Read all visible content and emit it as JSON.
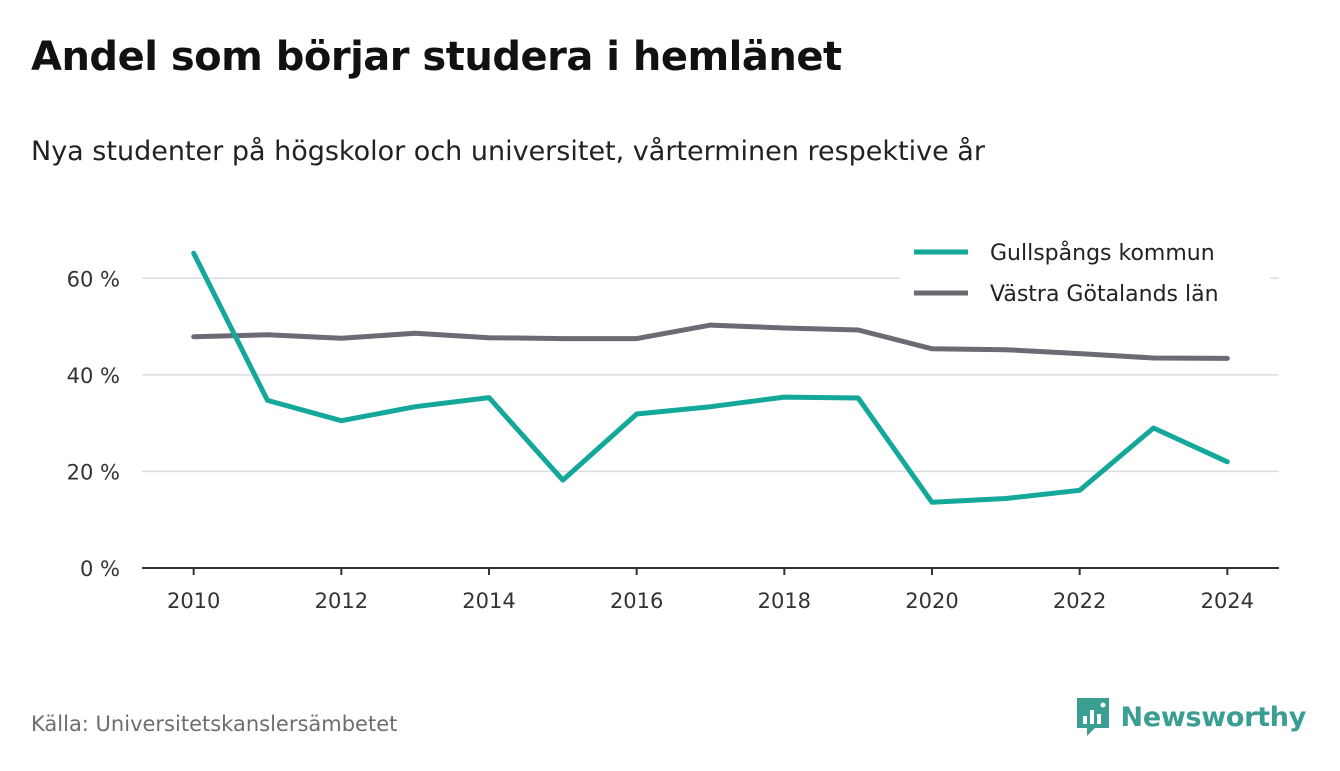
{
  "title": "Andel som börjar studera i hemlänet",
  "subtitle": "Nya studenter på högskolor och universitet, vårterminen respektive år",
  "source": "Källa: Universitetskanslersämbetet",
  "brand": {
    "name": "Newsworthy",
    "icon": "newsworthy-logo-icon",
    "color": "#3a9e93"
  },
  "chart_data": {
    "type": "line",
    "title": "Andel som börjar studera i hemlänet",
    "subtitle": "Nya studenter på högskolor och universitet, vårterminen respektive år",
    "xlabel": "",
    "ylabel": "",
    "x": [
      2010,
      2011,
      2012,
      2013,
      2014,
      2015,
      2016,
      2017,
      2018,
      2019,
      2020,
      2021,
      2022,
      2023,
      2024
    ],
    "x_ticks": [
      2010,
      2012,
      2014,
      2016,
      2018,
      2020,
      2022,
      2024
    ],
    "y_ticks": [
      0,
      20,
      40,
      60
    ],
    "y_tick_labels": [
      "0 %",
      "20 %",
      "40 %",
      "60 %"
    ],
    "ylim": [
      0,
      70
    ],
    "xlim": [
      2009.3,
      2024.7
    ],
    "grid": true,
    "legend_position": "top-right",
    "series": [
      {
        "name": "Gullspångs kommun",
        "color": "#14a89a",
        "values": [
          65.2,
          34.7,
          30.5,
          33.4,
          35.3,
          18.2,
          31.9,
          33.4,
          35.4,
          35.2,
          13.6,
          14.4,
          16.1,
          29.0,
          22.0
        ]
      },
      {
        "name": "Västra Götalands län",
        "color": "#6b6b73",
        "values": [
          47.9,
          48.3,
          47.6,
          48.6,
          47.7,
          47.5,
          47.5,
          50.3,
          49.7,
          49.3,
          45.4,
          45.2,
          44.4,
          43.5,
          43.4
        ]
      }
    ]
  }
}
